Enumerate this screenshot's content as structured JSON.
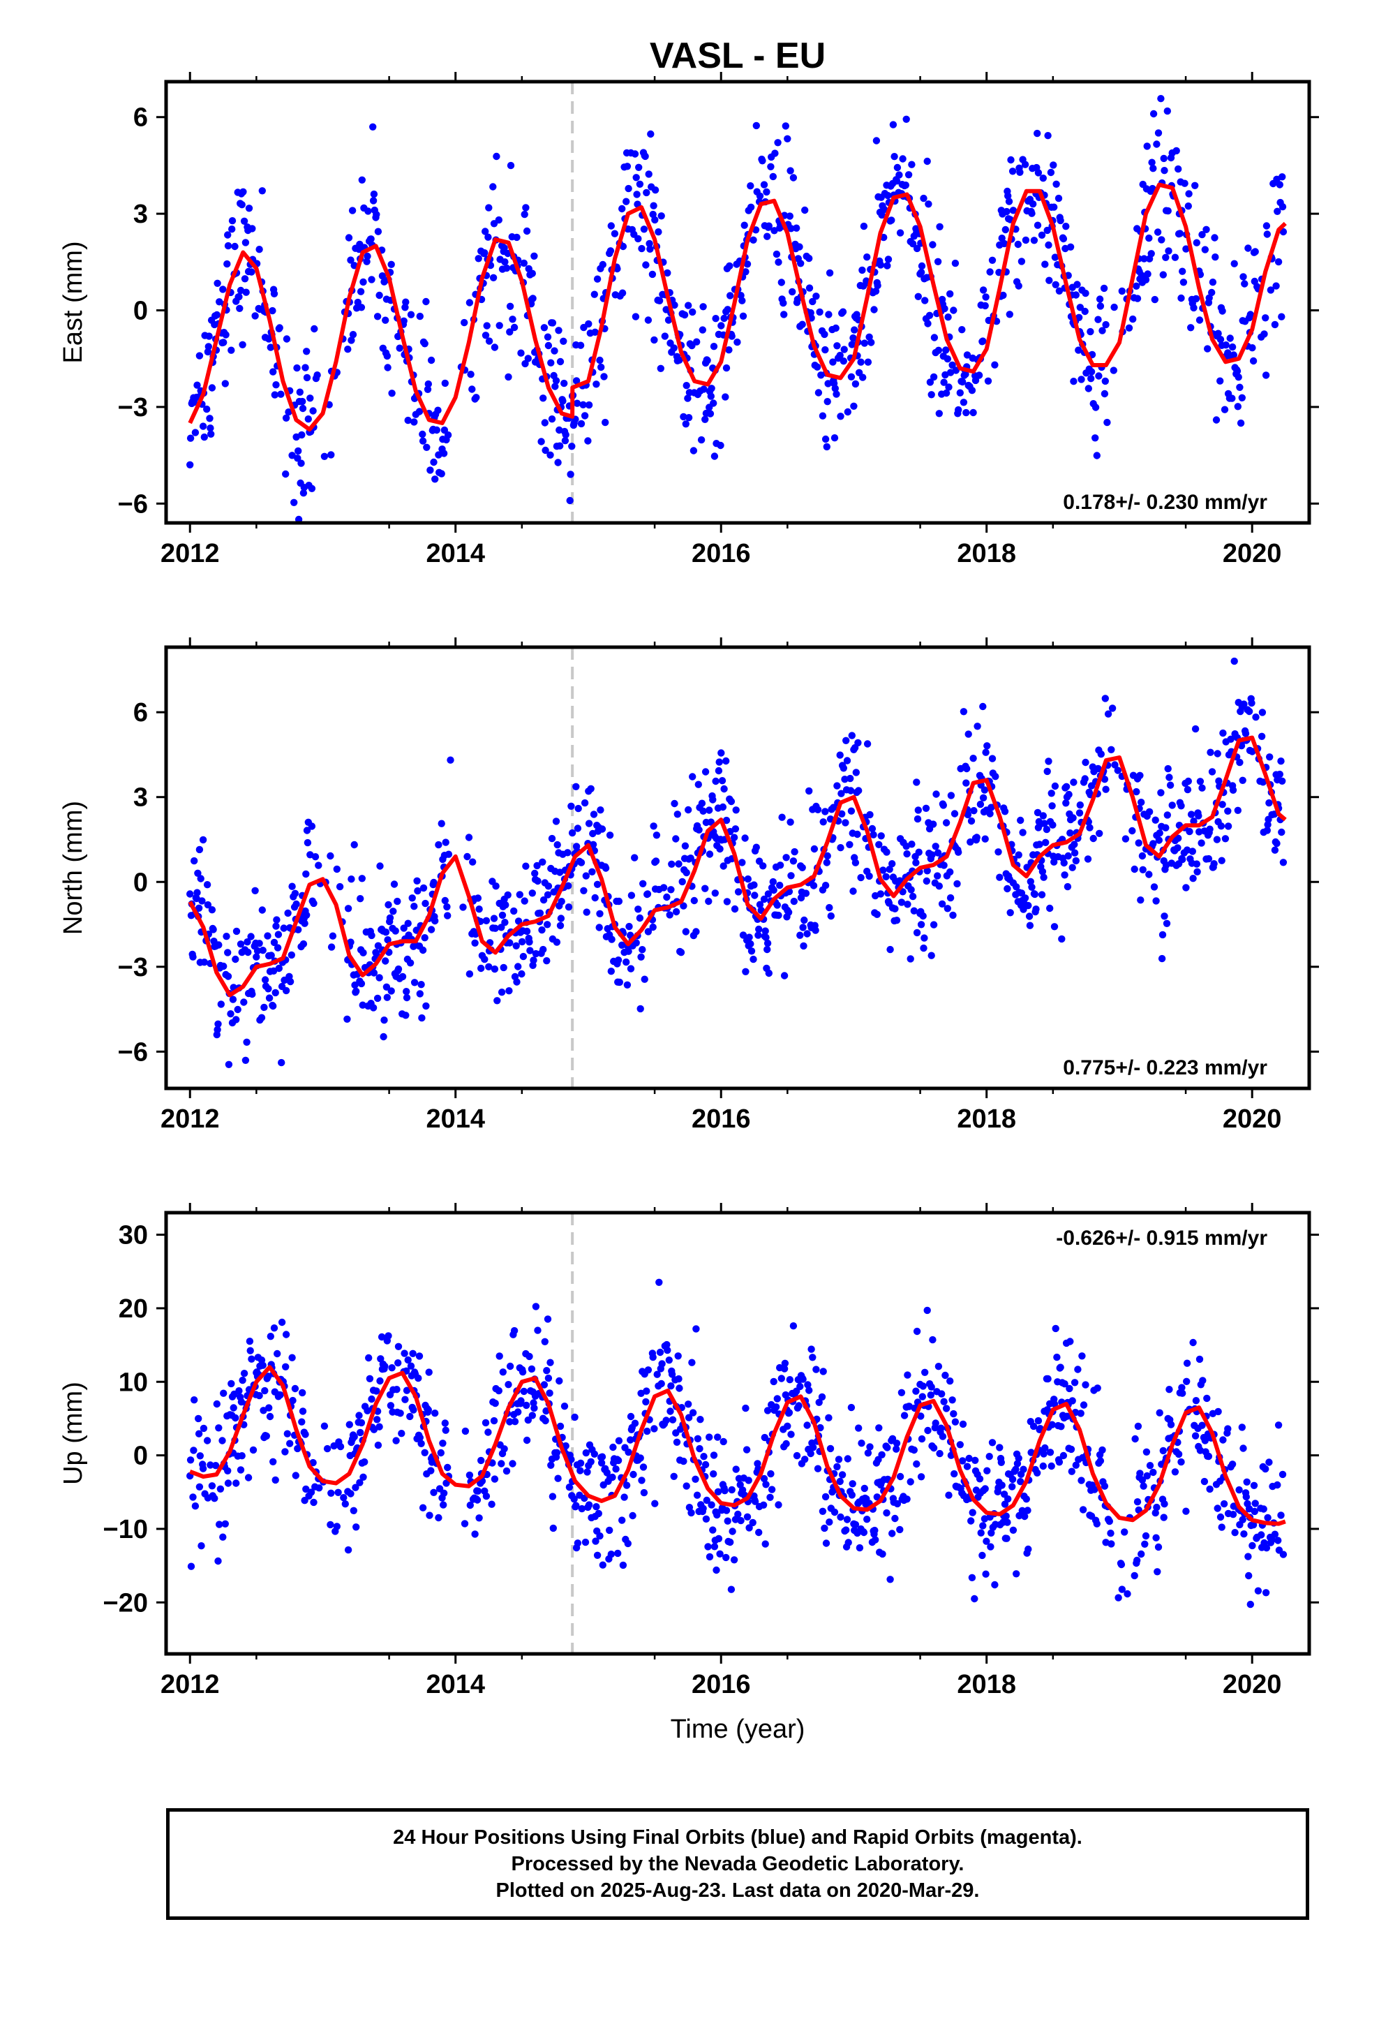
{
  "title": "VASL - EU",
  "x_axis_label": "Time (year)",
  "footer": {
    "line1": "24 Hour Positions Using Final Orbits (blue) and Rapid Orbits (magenta).",
    "line2": "Processed by the Nevada Geodetic Laboratory.",
    "line3": "Plotted on 2025-Aug-23. Last data on 2020-Mar-29."
  },
  "colors": {
    "points": "#0000ff",
    "model": "#ff0000",
    "break_line": "#c8c8c8",
    "frame": "#000000"
  },
  "chart_data": [
    {
      "type": "scatter",
      "ylabel": "East (mm)",
      "rate_label": "0.178+/- 0.230 mm/yr",
      "rate_position": "bottom-right",
      "xlim": [
        2011.82,
        2020.43
      ],
      "ylim": [
        -6.6,
        7.1
      ],
      "x_ticks": [
        2012,
        2014,
        2016,
        2018,
        2020
      ],
      "y_ticks": [
        -6,
        -3,
        0,
        3,
        6
      ],
      "equipment_change_x": 2014.88,
      "series": [
        {
          "kind": "model",
          "x": [
            2012.0,
            2012.1,
            2012.2,
            2012.3,
            2012.4,
            2012.5,
            2012.6,
            2012.7,
            2012.8,
            2012.9,
            2013.0,
            2013.1,
            2013.2,
            2013.3,
            2013.4,
            2013.5,
            2013.6,
            2013.7,
            2013.8,
            2013.9,
            2014.0,
            2014.1,
            2014.2,
            2014.3,
            2014.4,
            2014.5,
            2014.6,
            2014.7,
            2014.8,
            2014.88,
            2014.881,
            2015.0,
            2015.1,
            2015.2,
            2015.3,
            2015.4,
            2015.5,
            2015.6,
            2015.7,
            2015.8,
            2015.9,
            2016.0,
            2016.1,
            2016.2,
            2016.3,
            2016.4,
            2016.5,
            2016.6,
            2016.7,
            2016.8,
            2016.9,
            2017.0,
            2017.1,
            2017.2,
            2017.3,
            2017.4,
            2017.5,
            2017.6,
            2017.7,
            2017.8,
            2017.9,
            2018.0,
            2018.1,
            2018.2,
            2018.3,
            2018.4,
            2018.5,
            2018.6,
            2018.7,
            2018.8,
            2018.9,
            2019.0,
            2019.1,
            2019.2,
            2019.3,
            2019.4,
            2019.5,
            2019.6,
            2019.7,
            2019.8,
            2019.9,
            2020.0,
            2020.1,
            2020.2,
            2020.25
          ],
          "y": [
            -3.5,
            -2.6,
            -0.9,
            0.8,
            1.8,
            1.3,
            -0.3,
            -2.2,
            -3.4,
            -3.7,
            -3.2,
            -1.6,
            0.4,
            1.8,
            2.0,
            1.0,
            -0.8,
            -2.5,
            -3.4,
            -3.5,
            -2.7,
            -1.0,
            1.0,
            2.2,
            2.1,
            0.9,
            -0.9,
            -2.4,
            -3.2,
            -3.3,
            -2.4,
            -2.2,
            -0.5,
            1.6,
            3.0,
            3.2,
            2.2,
            0.4,
            -1.3,
            -2.2,
            -2.3,
            -1.6,
            0.2,
            2.2,
            3.3,
            3.4,
            2.4,
            0.6,
            -1.1,
            -2.0,
            -2.1,
            -1.5,
            0.4,
            2.4,
            3.5,
            3.6,
            2.6,
            0.8,
            -0.9,
            -1.8,
            -1.9,
            -1.2,
            0.7,
            2.7,
            3.7,
            3.7,
            2.6,
            0.8,
            -0.9,
            -1.7,
            -1.7,
            -1.0,
            1.0,
            3.0,
            3.9,
            3.8,
            2.6,
            0.7,
            -0.9,
            -1.6,
            -1.5,
            -0.6,
            1.2,
            2.5,
            2.7
          ]
        }
      ]
    },
    {
      "type": "scatter",
      "ylabel": "North (mm)",
      "rate_label": "0.775+/- 0.223 mm/yr",
      "rate_position": "bottom-right",
      "xlim": [
        2011.82,
        2020.43
      ],
      "ylim": [
        -7.3,
        8.3
      ],
      "x_ticks": [
        2012,
        2014,
        2016,
        2018,
        2020
      ],
      "y_ticks": [
        -6,
        -3,
        0,
        3,
        6
      ],
      "equipment_change_x": 2014.88,
      "series": [
        {
          "kind": "model",
          "x": [
            2012.0,
            2012.1,
            2012.2,
            2012.3,
            2012.4,
            2012.5,
            2012.6,
            2012.7,
            2012.8,
            2012.9,
            2013.0,
            2013.1,
            2013.2,
            2013.3,
            2013.4,
            2013.5,
            2013.6,
            2013.7,
            2013.8,
            2013.9,
            2014.0,
            2014.1,
            2014.2,
            2014.3,
            2014.4,
            2014.5,
            2014.6,
            2014.7,
            2014.8,
            2014.9,
            2015.0,
            2015.1,
            2015.2,
            2015.3,
            2015.4,
            2015.5,
            2015.6,
            2015.7,
            2015.8,
            2015.9,
            2016.0,
            2016.1,
            2016.2,
            2016.3,
            2016.4,
            2016.5,
            2016.6,
            2016.7,
            2016.8,
            2016.9,
            2017.0,
            2017.1,
            2017.2,
            2017.3,
            2017.4,
            2017.5,
            2017.6,
            2017.7,
            2017.8,
            2017.9,
            2018.0,
            2018.1,
            2018.2,
            2018.3,
            2018.4,
            2018.5,
            2018.6,
            2018.7,
            2018.8,
            2018.9,
            2019.0,
            2019.1,
            2019.2,
            2019.3,
            2019.4,
            2019.5,
            2019.6,
            2019.7,
            2019.8,
            2019.9,
            2020.0,
            2020.1,
            2020.2,
            2020.25
          ],
          "y": [
            -0.7,
            -1.6,
            -3.2,
            -4.0,
            -3.7,
            -3.0,
            -2.9,
            -2.7,
            -1.4,
            -0.1,
            0.1,
            -0.8,
            -2.6,
            -3.3,
            -2.9,
            -2.2,
            -2.1,
            -2.1,
            -1.2,
            0.3,
            0.9,
            -0.5,
            -2.1,
            -2.5,
            -1.9,
            -1.5,
            -1.4,
            -1.2,
            -0.2,
            0.9,
            1.3,
            0.1,
            -1.6,
            -2.2,
            -1.7,
            -1.0,
            -0.9,
            -0.7,
            0.4,
            1.8,
            2.2,
            1.0,
            -0.8,
            -1.3,
            -0.6,
            -0.2,
            -0.1,
            0.2,
            1.4,
            2.8,
            3.0,
            1.8,
            0.1,
            -0.5,
            0.1,
            0.5,
            0.6,
            0.9,
            2.1,
            3.5,
            3.6,
            2.3,
            0.6,
            0.2,
            0.9,
            1.3,
            1.4,
            1.7,
            2.9,
            4.3,
            4.4,
            3.0,
            1.3,
            0.9,
            1.6,
            2.0,
            2.0,
            2.3,
            3.6,
            5.0,
            5.1,
            3.8,
            2.4,
            2.2
          ]
        }
      ]
    },
    {
      "type": "scatter",
      "ylabel": "Up (mm)",
      "rate_label": "-0.626+/- 0.915 mm/yr",
      "rate_position": "top-right",
      "xlim": [
        2011.82,
        2020.43
      ],
      "ylim": [
        -27,
        33
      ],
      "x_ticks": [
        2012,
        2014,
        2016,
        2018,
        2020
      ],
      "y_ticks": [
        -20,
        -10,
        0,
        10,
        20,
        30
      ],
      "equipment_change_x": 2014.88,
      "series": [
        {
          "kind": "model",
          "x": [
            2012.0,
            2012.1,
            2012.2,
            2012.3,
            2012.4,
            2012.5,
            2012.6,
            2012.7,
            2012.8,
            2012.9,
            2013.0,
            2013.1,
            2013.2,
            2013.3,
            2013.4,
            2013.5,
            2013.6,
            2013.7,
            2013.8,
            2013.9,
            2014.0,
            2014.1,
            2014.2,
            2014.3,
            2014.4,
            2014.5,
            2014.6,
            2014.7,
            2014.8,
            2014.9,
            2015.0,
            2015.1,
            2015.2,
            2015.3,
            2015.4,
            2015.5,
            2015.6,
            2015.7,
            2015.8,
            2015.9,
            2016.0,
            2016.1,
            2016.2,
            2016.3,
            2016.4,
            2016.5,
            2016.6,
            2016.7,
            2016.8,
            2016.9,
            2017.0,
            2017.1,
            2017.2,
            2017.3,
            2017.4,
            2017.5,
            2017.6,
            2017.7,
            2017.8,
            2017.9,
            2018.0,
            2018.1,
            2018.2,
            2018.3,
            2018.4,
            2018.5,
            2018.6,
            2018.7,
            2018.8,
            2018.9,
            2019.0,
            2019.1,
            2019.2,
            2019.3,
            2019.4,
            2019.5,
            2019.6,
            2019.7,
            2019.8,
            2019.9,
            2020.0,
            2020.1,
            2020.2,
            2020.25
          ],
          "y": [
            -2.2,
            -2.9,
            -2.6,
            0.5,
            5.5,
            10.0,
            12.0,
            9.5,
            3.5,
            -1.5,
            -3.5,
            -3.8,
            -2.5,
            1.5,
            7.0,
            10.5,
            11.2,
            8.0,
            2.0,
            -2.5,
            -4.0,
            -4.2,
            -2.8,
            1.5,
            6.5,
            10.0,
            10.5,
            7.0,
            1.0,
            -3.5,
            -5.5,
            -6.2,
            -5.5,
            -2.0,
            3.5,
            8.0,
            8.8,
            5.5,
            -0.5,
            -4.5,
            -6.5,
            -6.8,
            -5.8,
            -2.5,
            3.0,
            7.2,
            8.0,
            4.5,
            -1.5,
            -5.5,
            -7.2,
            -7.4,
            -6.2,
            -3.0,
            2.5,
            6.8,
            7.4,
            4.0,
            -2.0,
            -6.0,
            -7.8,
            -8.0,
            -6.8,
            -3.5,
            2.0,
            6.2,
            7.0,
            3.5,
            -2.5,
            -6.5,
            -8.5,
            -8.8,
            -7.5,
            -4.0,
            1.5,
            5.8,
            6.5,
            3.0,
            -2.8,
            -7.0,
            -8.8,
            -9.2,
            -9.3,
            -9.0
          ]
        }
      ]
    }
  ]
}
